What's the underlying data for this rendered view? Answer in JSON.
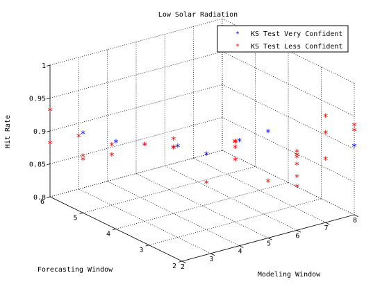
{
  "chart_data": {
    "type": "scatter",
    "title": "Low Solar Radiation",
    "xlabel": "Modeling Window",
    "ylabel": "Forecasting Window",
    "zlabel": "Hit Rate",
    "xlim": [
      2,
      8
    ],
    "ylim": [
      2,
      6
    ],
    "zlim": [
      0.8,
      1
    ],
    "xticks": [
      "2",
      "3",
      "4",
      "5",
      "6",
      "7",
      "8"
    ],
    "yticks": [
      "2",
      "3",
      "4",
      "5",
      "6"
    ],
    "zticks": [
      "0.8",
      "0.85",
      "0.9",
      "0.95",
      "1"
    ],
    "grid": true,
    "legend_position": "top-right",
    "marker": "*",
    "series": [
      {
        "name": "KS Test Very Confident",
        "color": "#0000ff",
        "points": [
          {
            "x": 2,
            "y": 5,
            "z": 0.92
          },
          {
            "x": 2,
            "y": 4,
            "z": 0.931
          },
          {
            "x": 3,
            "y": 4,
            "z": 0.915
          },
          {
            "x": 3,
            "y": 3,
            "z": 0.937
          },
          {
            "x": 4,
            "y": 3,
            "z": 0.913
          },
          {
            "x": 4,
            "y": 2,
            "z": 0.958
          },
          {
            "x": 5,
            "y": 2,
            "z": 0.96
          },
          {
            "x": 8,
            "y": 2,
            "z": 0.903
          }
        ]
      },
      {
        "name": "KS Test Less Confident",
        "color": "#ff0000",
        "points": [
          {
            "x": 2,
            "y": 6,
            "z": 0.93
          },
          {
            "x": 2,
            "y": 6,
            "z": 0.88
          },
          {
            "x": 3,
            "y": 6,
            "z": 0.879
          },
          {
            "x": 2,
            "y": 5,
            "z": 0.885
          },
          {
            "x": 2,
            "y": 5,
            "z": 0.88
          },
          {
            "x": 3,
            "y": 5,
            "z": 0.89
          },
          {
            "x": 3,
            "y": 5,
            "z": 0.875
          },
          {
            "x": 3,
            "y": 4,
            "z": 0.915
          },
          {
            "x": 4,
            "y": 4,
            "z": 0.912
          },
          {
            "x": 4,
            "y": 4,
            "z": 0.898
          },
          {
            "x": 4,
            "y": 4,
            "z": 0.899
          },
          {
            "x": 4,
            "y": 3,
            "z": 0.87
          },
          {
            "x": 5,
            "y": 3,
            "z": 0.921
          },
          {
            "x": 5,
            "y": 3,
            "z": 0.92
          },
          {
            "x": 5,
            "y": 3,
            "z": 0.912
          },
          {
            "x": 5,
            "y": 3,
            "z": 0.893
          },
          {
            "x": 5,
            "y": 2,
            "z": 0.885
          },
          {
            "x": 6,
            "y": 2,
            "z": 0.913
          },
          {
            "x": 6,
            "y": 2,
            "z": 0.88
          },
          {
            "x": 6,
            "y": 2,
            "z": 0.865
          },
          {
            "x": 6,
            "y": 2,
            "z": 0.918
          },
          {
            "x": 6,
            "y": 2,
            "z": 0.91
          },
          {
            "x": 6,
            "y": 2,
            "z": 0.899
          },
          {
            "x": 7,
            "y": 2,
            "z": 0.96
          },
          {
            "x": 7,
            "y": 2,
            "z": 0.935
          },
          {
            "x": 7,
            "y": 2,
            "z": 0.895
          },
          {
            "x": 8,
            "y": 2,
            "z": 0.935
          },
          {
            "x": 8,
            "y": 2,
            "z": 0.927
          }
        ]
      }
    ]
  }
}
